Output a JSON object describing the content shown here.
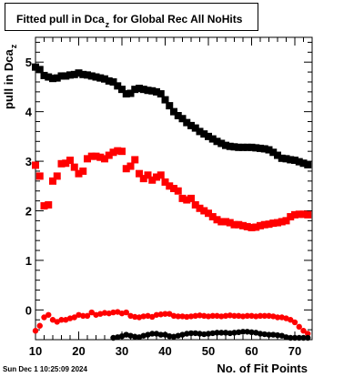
{
  "header": {
    "title_main": "Fitted pull in Dca",
    "title_sub": "z",
    "title_rest": "for Global Rec All NoHits"
  },
  "footer": {
    "timestamp": "Sun Dec  1 10:25:09 2024"
  },
  "chart_data": {
    "type": "scatter",
    "title": "Fitted pull in Dca_z for Global Rec All NoHits",
    "xlabel": "No. of Fit Points",
    "ylabel_main": "pull in Dca",
    "ylabel_sub": "z",
    "xlim": [
      10,
      74
    ],
    "ylim": [
      -0.6,
      5.5
    ],
    "x_ticks": [
      "10",
      "20",
      "30",
      "40",
      "50",
      "60",
      "70"
    ],
    "y_ticks": [
      "0",
      "1",
      "2",
      "3",
      "4",
      "5"
    ],
    "grid": false,
    "colors": {
      "black": "#000000",
      "red": "#ff0000"
    },
    "series": [
      {
        "color": "black",
        "marker": "square",
        "x": [
          10,
          11,
          12,
          13,
          14,
          15,
          16,
          17,
          18,
          19,
          20,
          21,
          22,
          23,
          24,
          25,
          26,
          27,
          28,
          29,
          30,
          31,
          32,
          33,
          34,
          35,
          36,
          37,
          38,
          39,
          40,
          41,
          42,
          43,
          44,
          45,
          46,
          47,
          48,
          49,
          50,
          51,
          52,
          53,
          54,
          55,
          56,
          57,
          58,
          59,
          60,
          61,
          62,
          63,
          64,
          65,
          66,
          67,
          68,
          69,
          70,
          71,
          72,
          73
        ],
        "values": [
          4.9,
          4.85,
          4.73,
          4.7,
          4.67,
          4.68,
          4.72,
          4.72,
          4.74,
          4.75,
          4.78,
          4.75,
          4.74,
          4.72,
          4.7,
          4.68,
          4.66,
          4.62,
          4.6,
          4.52,
          4.45,
          4.36,
          4.37,
          4.45,
          4.47,
          4.45,
          4.43,
          4.42,
          4.4,
          4.36,
          4.24,
          4.12,
          4.0,
          3.92,
          3.86,
          3.78,
          3.72,
          3.67,
          3.6,
          3.55,
          3.5,
          3.45,
          3.4,
          3.36,
          3.32,
          3.3,
          3.29,
          3.28,
          3.28,
          3.28,
          3.28,
          3.27,
          3.26,
          3.25,
          3.23,
          3.18,
          3.12,
          3.06,
          3.05,
          3.03,
          3.02,
          2.99,
          2.96,
          2.93
        ]
      },
      {
        "color": "red",
        "marker": "square",
        "x": [
          10,
          11,
          12,
          13,
          14,
          15,
          16,
          17,
          18,
          19,
          20,
          21,
          22,
          23,
          24,
          25,
          26,
          27,
          28,
          29,
          30,
          31,
          32,
          33,
          34,
          35,
          36,
          37,
          38,
          39,
          40,
          41,
          42,
          43,
          44,
          45,
          46,
          47,
          48,
          49,
          50,
          51,
          52,
          53,
          54,
          55,
          56,
          57,
          58,
          59,
          60,
          61,
          62,
          63,
          64,
          65,
          66,
          67,
          68,
          69,
          70,
          71,
          72,
          73
        ],
        "values": [
          2.92,
          2.7,
          2.1,
          2.12,
          2.6,
          2.7,
          2.95,
          2.96,
          3.02,
          2.88,
          2.75,
          2.8,
          3.05,
          3.1,
          3.1,
          3.08,
          3.05,
          3.12,
          3.18,
          3.21,
          3.2,
          2.85,
          2.9,
          3.03,
          2.75,
          2.65,
          2.72,
          2.62,
          2.68,
          2.72,
          2.58,
          2.5,
          2.45,
          2.4,
          2.25,
          2.22,
          2.25,
          2.12,
          2.05,
          2.0,
          1.95,
          1.88,
          1.82,
          1.78,
          1.78,
          1.76,
          1.72,
          1.72,
          1.7,
          1.68,
          1.66,
          1.67,
          1.7,
          1.72,
          1.73,
          1.75,
          1.76,
          1.78,
          1.8,
          1.88,
          1.92,
          1.93,
          1.93,
          1.92
        ]
      },
      {
        "color": "red",
        "marker": "circle",
        "x": [
          10,
          11,
          12,
          13,
          14,
          15,
          16,
          17,
          18,
          19,
          20,
          21,
          22,
          23,
          24,
          25,
          26,
          27,
          28,
          29,
          30,
          31,
          32,
          33,
          34,
          35,
          36,
          37,
          38,
          39,
          40,
          41,
          42,
          43,
          44,
          45,
          46,
          47,
          48,
          49,
          50,
          51,
          52,
          53,
          54,
          55,
          56,
          57,
          58,
          59,
          60,
          61,
          62,
          63,
          64,
          65,
          66,
          67,
          68,
          69,
          70,
          71,
          72,
          73
        ],
        "values": [
          -0.42,
          -0.32,
          -0.15,
          -0.1,
          -0.2,
          -0.24,
          -0.2,
          -0.2,
          -0.17,
          -0.15,
          -0.1,
          -0.12,
          -0.12,
          -0.05,
          -0.1,
          -0.08,
          -0.06,
          -0.07,
          -0.05,
          -0.04,
          -0.07,
          -0.05,
          -0.12,
          -0.14,
          -0.15,
          -0.13,
          -0.12,
          -0.14,
          -0.1,
          -0.09,
          -0.08,
          -0.08,
          -0.12,
          -0.13,
          -0.13,
          -0.14,
          -0.13,
          -0.12,
          -0.11,
          -0.12,
          -0.13,
          -0.12,
          -0.12,
          -0.13,
          -0.12,
          -0.11,
          -0.12,
          -0.12,
          -0.13,
          -0.12,
          -0.12,
          -0.13,
          -0.12,
          -0.12,
          -0.12,
          -0.13,
          -0.15,
          -0.15,
          -0.17,
          -0.2,
          -0.25,
          -0.34,
          -0.42,
          -0.48
        ]
      },
      {
        "color": "black",
        "marker": "circle",
        "x": [
          28,
          29,
          30,
          31,
          32,
          33,
          34,
          35,
          36,
          37,
          38,
          39,
          40,
          41,
          42,
          43,
          44,
          45,
          46,
          47,
          48,
          49,
          50,
          51,
          52,
          53,
          54,
          55,
          56,
          57,
          58,
          59,
          60,
          61,
          62,
          63,
          64,
          65,
          66,
          67,
          68,
          69,
          70,
          71,
          72,
          73
        ],
        "values": [
          -0.58,
          -0.55,
          -0.53,
          -0.5,
          -0.52,
          -0.54,
          -0.55,
          -0.52,
          -0.5,
          -0.48,
          -0.48,
          -0.5,
          -0.5,
          -0.53,
          -0.54,
          -0.52,
          -0.5,
          -0.48,
          -0.47,
          -0.47,
          -0.48,
          -0.49,
          -0.48,
          -0.47,
          -0.46,
          -0.46,
          -0.46,
          -0.47,
          -0.46,
          -0.45,
          -0.44,
          -0.44,
          -0.45,
          -0.46,
          -0.48,
          -0.49,
          -0.5,
          -0.5,
          -0.51,
          -0.52,
          -0.55,
          -0.58,
          -0.6,
          -0.6,
          -0.6,
          -0.6
        ]
      }
    ]
  }
}
